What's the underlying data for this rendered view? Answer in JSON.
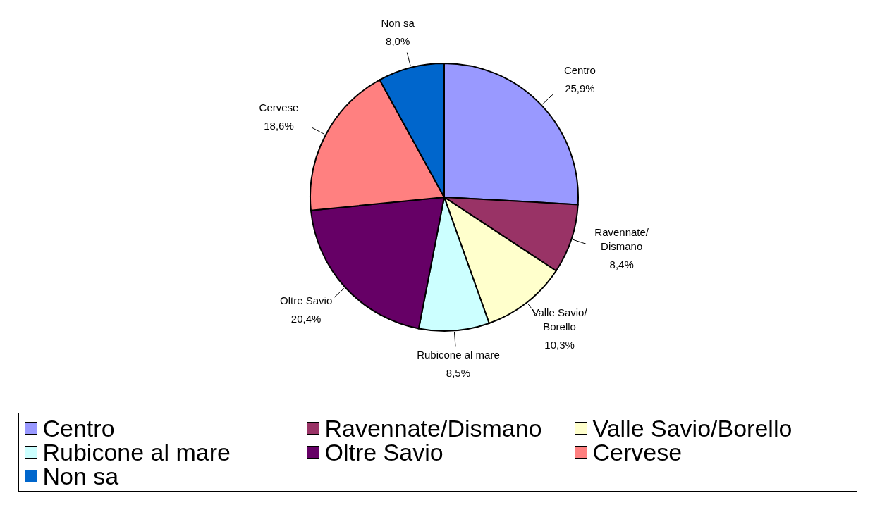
{
  "chart_data": {
    "type": "pie",
    "categories": [
      "Centro",
      "Ravennate/Dismano",
      "Valle Savio/Borello",
      "Rubicone al mare",
      "Oltre Savio",
      "Cervese",
      "Non sa"
    ],
    "values": [
      25.9,
      8.4,
      10.3,
      8.5,
      20.4,
      18.6,
      8.0
    ],
    "value_labels": [
      "25,9%",
      "8,4%",
      "10,3%",
      "8,5%",
      "20,4%",
      "18,6%",
      "8,0%"
    ],
    "colors": [
      "#9999ff",
      "#993366",
      "#ffffcc",
      "#ccffff",
      "#660066",
      "#ff8080",
      "#0066cc"
    ],
    "legend": "bottom"
  }
}
